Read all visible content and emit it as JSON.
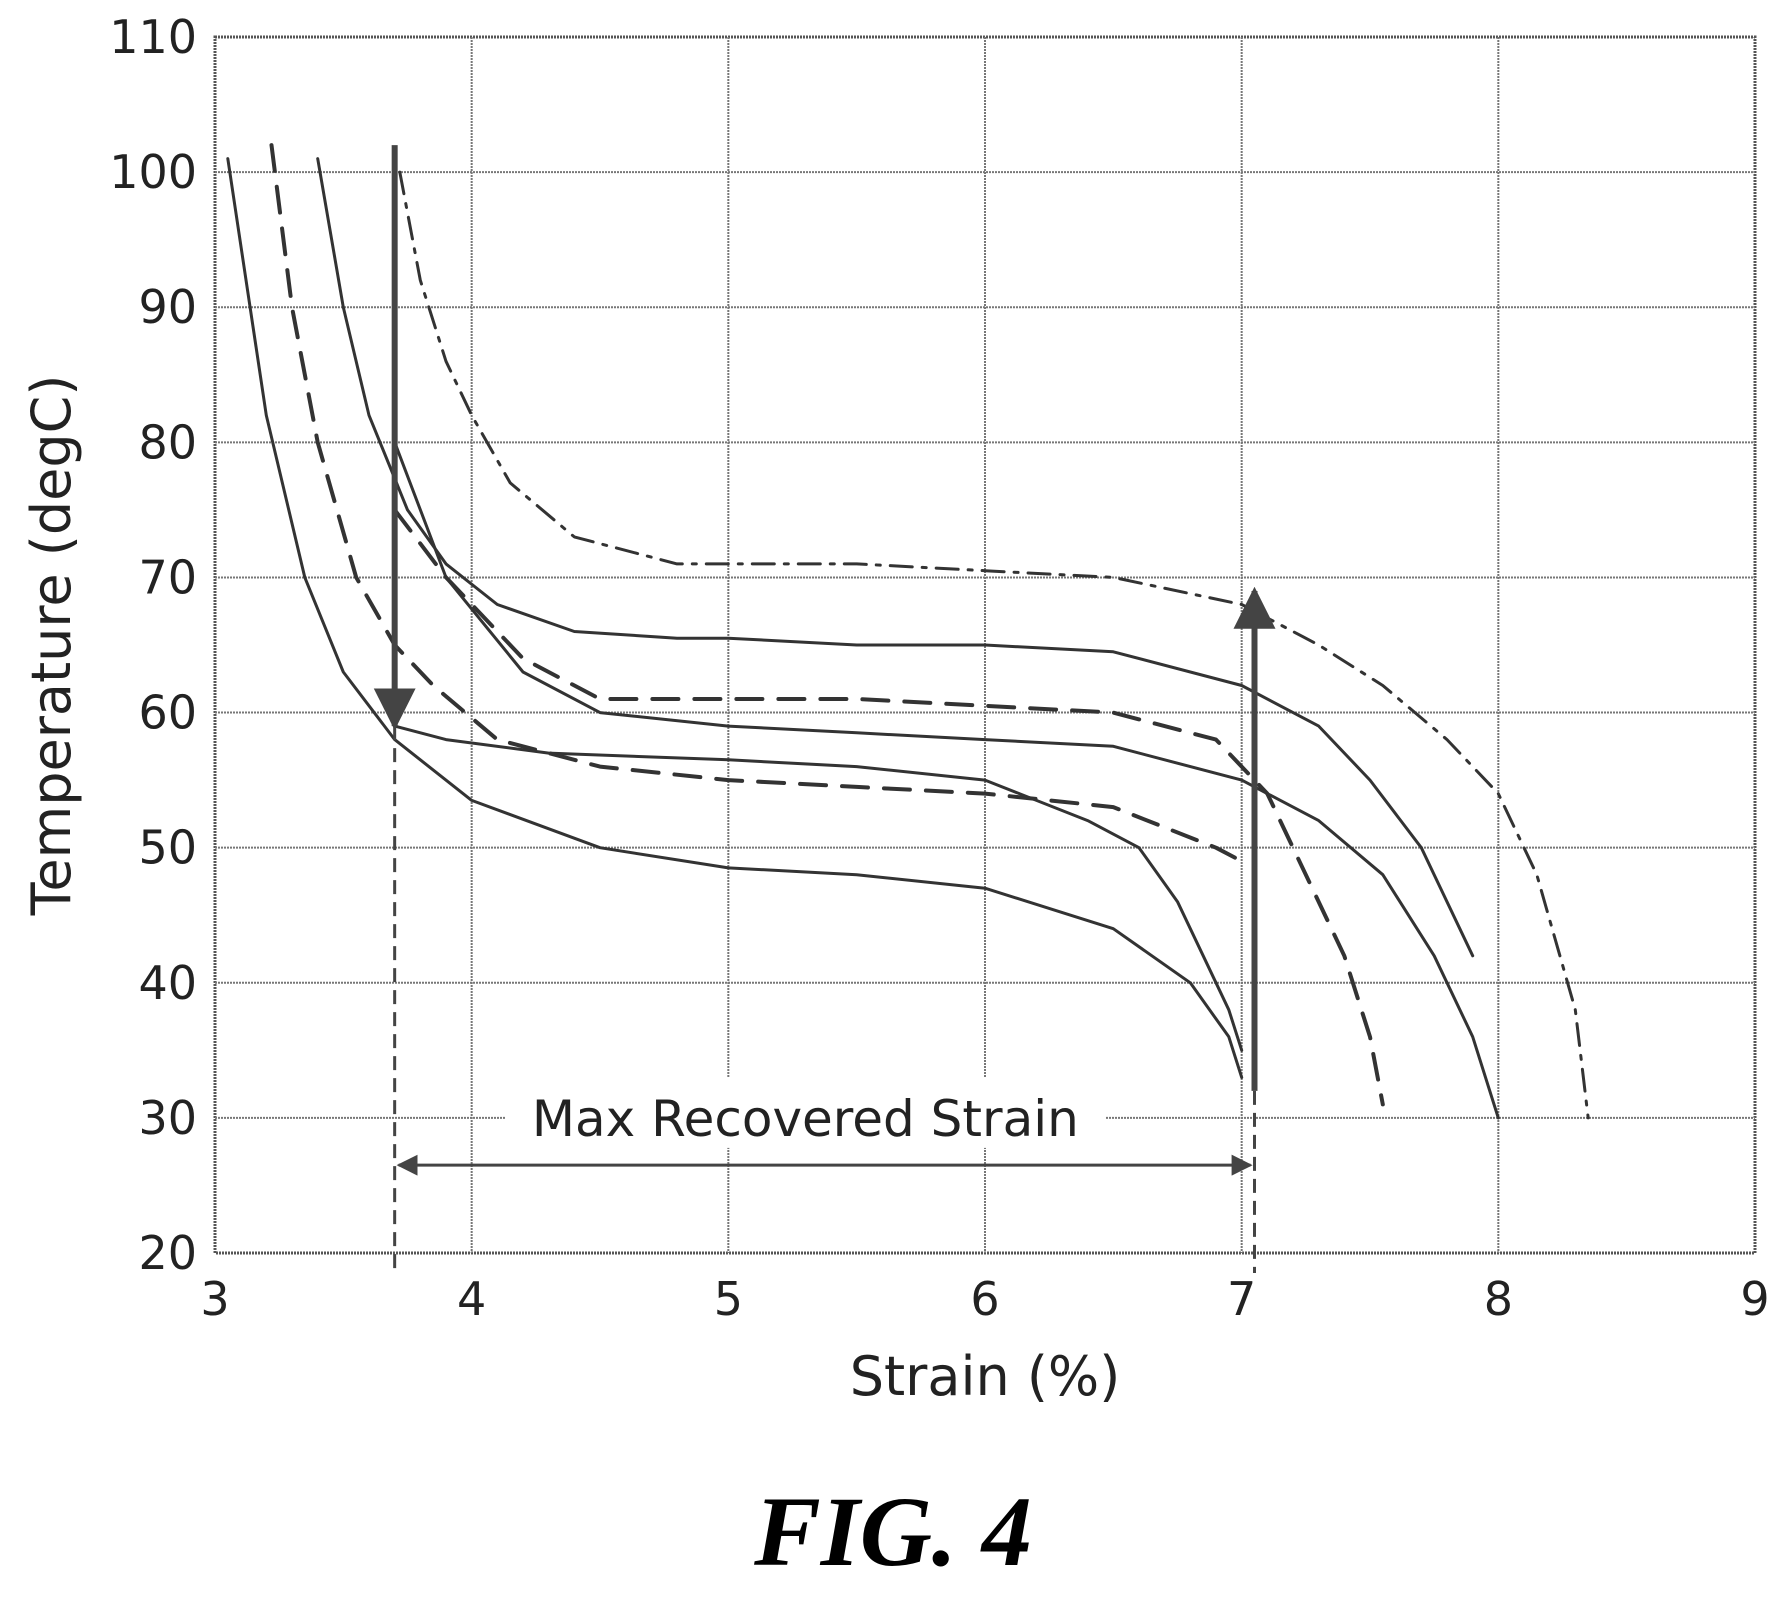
{
  "chart_data": {
    "type": "line",
    "xlabel": "Strain (%)",
    "ylabel": "Temperature (degC)",
    "xlim": [
      3,
      9
    ],
    "ylim": [
      20,
      110
    ],
    "x_ticks": [
      "3",
      "4",
      "5",
      "6",
      "7",
      "8",
      "9"
    ],
    "y_ticks": [
      "20",
      "30",
      "40",
      "50",
      "60",
      "70",
      "80",
      "90",
      "100",
      "110"
    ],
    "grid": true,
    "legend": "none",
    "series": [
      {
        "style": "solid",
        "x": [
          3.05,
          3.2,
          3.35,
          3.5,
          3.7,
          4.0,
          4.5,
          5.0,
          5.5,
          6.0,
          6.5,
          6.8,
          6.95,
          7.0
        ],
        "y": [
          101,
          82,
          70,
          63,
          58,
          53.5,
          50,
          48.5,
          48,
          47,
          44,
          40,
          36,
          33
        ]
      },
      {
        "style": "dashed",
        "x": [
          3.22,
          3.3,
          3.4,
          3.55,
          3.7,
          3.85,
          4.1,
          4.5,
          5.0,
          5.5,
          6.0,
          6.5,
          6.9,
          7.0
        ],
        "y": [
          102,
          90,
          80,
          70,
          65,
          62,
          58,
          56,
          55,
          54.5,
          54,
          53,
          50,
          49
        ]
      },
      {
        "style": "solid",
        "x": [
          3.4,
          3.5,
          3.6,
          3.75,
          3.9,
          4.1,
          4.4,
          4.8,
          5.0,
          5.5,
          6.0,
          6.5,
          7.0,
          7.3,
          7.5,
          7.7,
          7.85,
          7.9
        ],
        "y": [
          101,
          90,
          82,
          75,
          71,
          68,
          66,
          65.5,
          65.5,
          65,
          65,
          64.5,
          62,
          59,
          55,
          50,
          44,
          42
        ]
      },
      {
        "style": "dash-dot",
        "x": [
          3.72,
          3.8,
          3.9,
          4.0,
          4.15,
          4.4,
          4.8,
          5.5,
          6.0,
          6.5,
          7.0,
          7.3,
          7.55,
          7.8,
          8.0,
          8.15,
          8.3,
          8.35
        ],
        "y": [
          100,
          92,
          86,
          82,
          77,
          73,
          71,
          71,
          70.5,
          70,
          68,
          65,
          62,
          58,
          54,
          48,
          38,
          30
        ]
      },
      {
        "style": "solid",
        "x": [
          3.7,
          3.9,
          4.3,
          5.0,
          5.5,
          6.0,
          6.4,
          6.6,
          6.75,
          6.85,
          6.95,
          7.0
        ],
        "y": [
          59,
          58,
          57,
          56.5,
          56,
          55,
          52,
          50,
          46,
          42,
          38,
          35
        ]
      },
      {
        "style": "dashed",
        "x": [
          3.7,
          3.9,
          4.2,
          4.5,
          5.0,
          5.5,
          6.0,
          6.5,
          6.9,
          7.1,
          7.25,
          7.4,
          7.5,
          7.55
        ],
        "y": [
          75,
          70,
          64,
          61,
          61,
          61,
          60.5,
          60,
          58,
          54,
          48,
          42,
          36,
          31
        ]
      },
      {
        "style": "solid",
        "x": [
          3.7,
          3.9,
          4.2,
          4.5,
          5.0,
          5.5,
          6.0,
          6.5,
          7.0,
          7.3,
          7.55,
          7.75,
          7.9,
          8.0
        ],
        "y": [
          80,
          70,
          63,
          60,
          59,
          58.5,
          58,
          57.5,
          55,
          52,
          48,
          42,
          36,
          30
        ]
      }
    ],
    "arrows": [
      {
        "x1": 3.7,
        "y1": 102,
        "x2": 3.7,
        "y2": 59
      },
      {
        "x1": 7.05,
        "y1": 32,
        "x2": 7.05,
        "y2": 69
      }
    ],
    "recovered_strain": {
      "from": 3.7,
      "to": 7.05,
      "y": 26.5
    },
    "annotations": [
      {
        "text": "Max Recovered Strain",
        "x": 5.3,
        "y": 30
      }
    ]
  },
  "figure_label": "FIG. 4"
}
